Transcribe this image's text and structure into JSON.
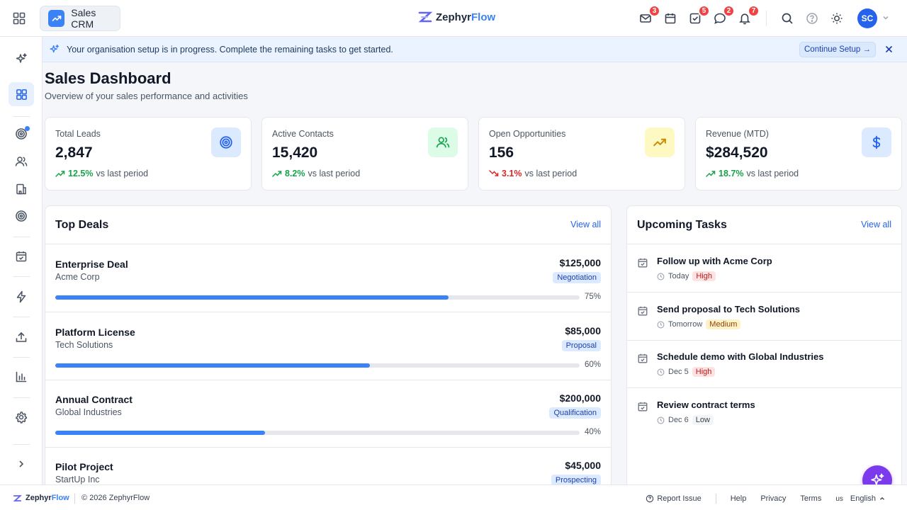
{
  "header": {
    "app_name": "Sales CRM",
    "brand_name_dark": "Zephyr",
    "brand_name_accent": "Flow",
    "icons": [
      {
        "name": "mail-icon",
        "badge": "3"
      },
      {
        "name": "calendar-icon",
        "badge": ""
      },
      {
        "name": "tasks-icon",
        "badge": "5"
      },
      {
        "name": "chat-icon",
        "badge": "2"
      },
      {
        "name": "bell-icon",
        "badge": "7"
      }
    ],
    "user_initials": "SC"
  },
  "banner": {
    "text": "Your organisation setup is in progress. Complete the remaining tasks to get started.",
    "button_label": "Continue Setup →"
  },
  "page": {
    "title": "Sales Dashboard",
    "subtitle": "Overview of your sales performance and activities"
  },
  "stats": [
    {
      "label": "Total Leads",
      "value": "2,847",
      "change": "12.5%",
      "direction": "up",
      "suffix": "vs last period",
      "icon": "target-icon",
      "color": "#2563eb",
      "bg": "#dbeafe"
    },
    {
      "label": "Active Contacts",
      "value": "15,420",
      "change": "8.2%",
      "direction": "up",
      "suffix": "vs last period",
      "icon": "users-icon",
      "color": "#16a34a",
      "bg": "#dcfce7"
    },
    {
      "label": "Open Opportunities",
      "value": "156",
      "change": "3.1%",
      "direction": "down",
      "suffix": "vs last period",
      "icon": "trending-up-icon",
      "color": "#ca8a04",
      "bg": "#fef9c3"
    },
    {
      "label": "Revenue (MTD)",
      "value": "$284,520",
      "change": "18.7%",
      "direction": "up",
      "suffix": "vs last period",
      "icon": "dollar-icon",
      "color": "#2563eb",
      "bg": "#dbeafe"
    }
  ],
  "deals_panel": {
    "title": "Top Deals",
    "link": "View all",
    "items": [
      {
        "name": "Enterprise Deal",
        "company": "Acme Corp",
        "amount": "$125,000",
        "stage": "Negotiation",
        "progress": 75,
        "progress_label": "75%"
      },
      {
        "name": "Platform License",
        "company": "Tech Solutions",
        "amount": "$85,000",
        "stage": "Proposal",
        "progress": 60,
        "progress_label": "60%"
      },
      {
        "name": "Annual Contract",
        "company": "Global Industries",
        "amount": "$200,000",
        "stage": "Qualification",
        "progress": 40,
        "progress_label": "40%"
      },
      {
        "name": "Pilot Project",
        "company": "StartUp Inc",
        "amount": "$45,000",
        "stage": "Prospecting",
        "progress": 0,
        "progress_label": ""
      }
    ]
  },
  "tasks_panel": {
    "title": "Upcoming Tasks",
    "link": "View all",
    "items": [
      {
        "title": "Follow up with Acme Corp",
        "due": "Today",
        "priority": "High"
      },
      {
        "title": "Send proposal to Tech Solutions",
        "due": "Tomorrow",
        "priority": "Medium"
      },
      {
        "title": "Schedule demo with Global Industries",
        "due": "Dec 5",
        "priority": "High"
      },
      {
        "title": "Review contract terms",
        "due": "Dec 6",
        "priority": "Low"
      }
    ]
  },
  "footer": {
    "brand_dark": "Zephyr",
    "brand_accent": "Flow",
    "copyright": "© 2026 ZephyrFlow",
    "report_issue": "Report Issue",
    "help": "Help",
    "privacy": "Privacy",
    "terms": "Terms",
    "lang_code": "us",
    "language": "English"
  }
}
